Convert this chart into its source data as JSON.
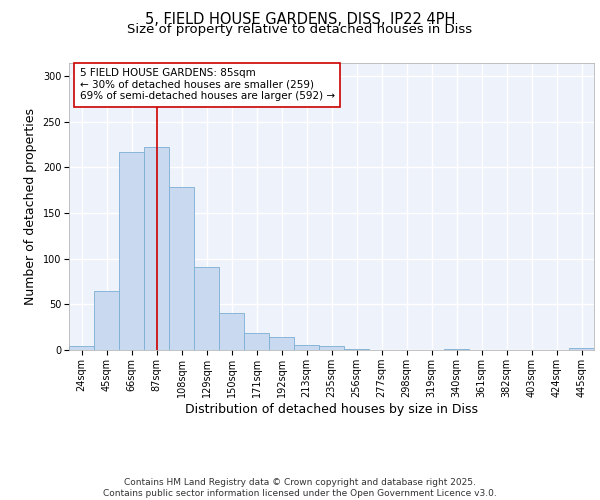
{
  "title_line1": "5, FIELD HOUSE GARDENS, DISS, IP22 4PH",
  "title_line2": "Size of property relative to detached houses in Diss",
  "xlabel": "Distribution of detached houses by size in Diss",
  "ylabel": "Number of detached properties",
  "categories": [
    "24sqm",
    "45sqm",
    "66sqm",
    "87sqm",
    "108sqm",
    "129sqm",
    "150sqm",
    "171sqm",
    "192sqm",
    "213sqm",
    "235sqm",
    "256sqm",
    "277sqm",
    "298sqm",
    "319sqm",
    "340sqm",
    "361sqm",
    "382sqm",
    "403sqm",
    "424sqm",
    "445sqm"
  ],
  "values": [
    4,
    65,
    217,
    222,
    179,
    91,
    41,
    19,
    14,
    6,
    4,
    1,
    0,
    0,
    0,
    1,
    0,
    0,
    0,
    0,
    2
  ],
  "bar_color": "#c8d9f0",
  "bar_edge_color": "#7bafd4",
  "background_color": "#eef3fb",
  "grid_color": "#ffffff",
  "vline_x": 3.0,
  "vline_color": "#cc0000",
  "annotation_text": "5 FIELD HOUSE GARDENS: 85sqm\n← 30% of detached houses are smaller (259)\n69% of semi-detached houses are larger (592) →",
  "annotation_box_color": "#ffffff",
  "annotation_box_edge": "#cc0000",
  "ylim": [
    0,
    315
  ],
  "yticks": [
    0,
    50,
    100,
    150,
    200,
    250,
    300
  ],
  "footer_text": "Contains HM Land Registry data © Crown copyright and database right 2025.\nContains public sector information licensed under the Open Government Licence v3.0.",
  "title_fontsize": 10.5,
  "subtitle_fontsize": 9.5,
  "axis_label_fontsize": 9,
  "tick_fontsize": 7,
  "annotation_fontsize": 7.5,
  "footer_fontsize": 6.5
}
